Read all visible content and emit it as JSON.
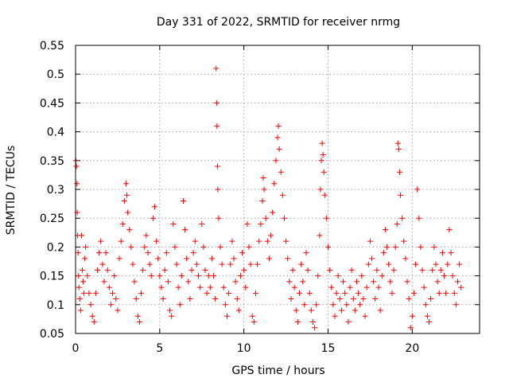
{
  "chart_data": {
    "type": "scatter",
    "title": "Day 331 of 2022, SRMTID for receiver nrmg",
    "xlabel": "GPS time / hours",
    "ylabel": "SRMTID / TECUs",
    "xlim": [
      0,
      24
    ],
    "ylim": [
      0.05,
      0.55
    ],
    "xticks": [
      0,
      5,
      10,
      15,
      20
    ],
    "xtick_labels": [
      "0",
      "5",
      "10",
      "15",
      "20"
    ],
    "yticks": [
      0.05,
      0.1,
      0.15,
      0.2,
      0.25,
      0.3,
      0.35,
      0.4,
      0.45,
      0.5,
      0.55
    ],
    "ytick_labels": [
      "0.05",
      "0.1",
      "0.15",
      "0.2",
      "0.25",
      "0.3",
      "0.35",
      "0.4",
      "0.45",
      "0.5",
      "0.55"
    ],
    "grid": true,
    "marker": "+",
    "series": [
      {
        "name": "nrmg",
        "color": "#ff0000",
        "points": [
          [
            0.02,
            0.35
          ],
          [
            0.05,
            0.34
          ],
          [
            0.08,
            0.31
          ],
          [
            0.1,
            0.26
          ],
          [
            0.12,
            0.22
          ],
          [
            0.15,
            0.19
          ],
          [
            0.18,
            0.15
          ],
          [
            0.2,
            0.13
          ],
          [
            0.25,
            0.11
          ],
          [
            0.3,
            0.09
          ],
          [
            0.35,
            0.22
          ],
          [
            0.4,
            0.16
          ],
          [
            0.45,
            0.14
          ],
          [
            0.5,
            0.12
          ],
          [
            0.55,
            0.18
          ],
          [
            0.6,
            0.2
          ],
          [
            0.7,
            0.15
          ],
          [
            0.8,
            0.12
          ],
          [
            0.9,
            0.1
          ],
          [
            1.0,
            0.08
          ],
          [
            1.1,
            0.07
          ],
          [
            1.2,
            0.12
          ],
          [
            1.3,
            0.16
          ],
          [
            1.4,
            0.19
          ],
          [
            1.5,
            0.21
          ],
          [
            1.6,
            0.17
          ],
          [
            1.7,
            0.14
          ],
          [
            1.8,
            0.19
          ],
          [
            1.9,
            0.16
          ],
          [
            2.0,
            0.13
          ],
          [
            2.1,
            0.1
          ],
          [
            2.2,
            0.12
          ],
          [
            2.3,
            0.15
          ],
          [
            2.4,
            0.11
          ],
          [
            2.5,
            0.09
          ],
          [
            2.6,
            0.18
          ],
          [
            2.7,
            0.21
          ],
          [
            2.8,
            0.24
          ],
          [
            2.9,
            0.28
          ],
          [
            3.0,
            0.31
          ],
          [
            3.05,
            0.29
          ],
          [
            3.1,
            0.26
          ],
          [
            3.2,
            0.23
          ],
          [
            3.3,
            0.2
          ],
          [
            3.4,
            0.17
          ],
          [
            3.5,
            0.14
          ],
          [
            3.6,
            0.11
          ],
          [
            3.7,
            0.08
          ],
          [
            3.8,
            0.07
          ],
          [
            3.9,
            0.12
          ],
          [
            4.0,
            0.16
          ],
          [
            4.1,
            0.2
          ],
          [
            4.2,
            0.22
          ],
          [
            4.3,
            0.19
          ],
          [
            4.4,
            0.17
          ],
          [
            4.5,
            0.15
          ],
          [
            4.6,
            0.25
          ],
          [
            4.7,
            0.27
          ],
          [
            4.8,
            0.21
          ],
          [
            4.9,
            0.18
          ],
          [
            5.0,
            0.15
          ],
          [
            5.1,
            0.13
          ],
          [
            5.2,
            0.11
          ],
          [
            5.3,
            0.16
          ],
          [
            5.4,
            0.19
          ],
          [
            5.5,
            0.14
          ],
          [
            5.6,
            0.09
          ],
          [
            5.7,
            0.08
          ],
          [
            5.8,
            0.24
          ],
          [
            5.9,
            0.2
          ],
          [
            6.0,
            0.17
          ],
          [
            6.1,
            0.13
          ],
          [
            6.2,
            0.1
          ],
          [
            6.3,
            0.15
          ],
          [
            6.4,
            0.28
          ],
          [
            6.5,
            0.23
          ],
          [
            6.6,
            0.18
          ],
          [
            6.7,
            0.14
          ],
          [
            6.8,
            0.11
          ],
          [
            6.9,
            0.16
          ],
          [
            7.0,
            0.19
          ],
          [
            7.1,
            0.21
          ],
          [
            7.2,
            0.17
          ],
          [
            7.3,
            0.15
          ],
          [
            7.4,
            0.13
          ],
          [
            7.5,
            0.24
          ],
          [
            7.6,
            0.2
          ],
          [
            7.7,
            0.16
          ],
          [
            7.8,
            0.12
          ],
          [
            7.9,
            0.15
          ],
          [
            8.0,
            0.13
          ],
          [
            8.1,
            0.18
          ],
          [
            8.2,
            0.15
          ],
          [
            8.3,
            0.11
          ],
          [
            8.35,
            0.51
          ],
          [
            8.38,
            0.45
          ],
          [
            8.4,
            0.41
          ],
          [
            8.43,
            0.34
          ],
          [
            8.45,
            0.3
          ],
          [
            8.5,
            0.25
          ],
          [
            8.6,
            0.2
          ],
          [
            8.7,
            0.17
          ],
          [
            8.8,
            0.13
          ],
          [
            8.9,
            0.1
          ],
          [
            9.0,
            0.08
          ],
          [
            9.1,
            0.12
          ],
          [
            9.2,
            0.17
          ],
          [
            9.3,
            0.21
          ],
          [
            9.4,
            0.18
          ],
          [
            9.5,
            0.14
          ],
          [
            9.6,
            0.11
          ],
          [
            9.7,
            0.09
          ],
          [
            9.8,
            0.15
          ],
          [
            9.9,
            0.19
          ],
          [
            10.0,
            0.16
          ],
          [
            10.1,
            0.13
          ],
          [
            10.2,
            0.24
          ],
          [
            10.3,
            0.2
          ],
          [
            10.4,
            0.17
          ],
          [
            10.5,
            0.08
          ],
          [
            10.6,
            0.07
          ],
          [
            10.7,
            0.12
          ],
          [
            10.8,
            0.17
          ],
          [
            10.9,
            0.21
          ],
          [
            11.0,
            0.24
          ],
          [
            11.1,
            0.28
          ],
          [
            11.15,
            0.32
          ],
          [
            11.2,
            0.3
          ],
          [
            11.3,
            0.25
          ],
          [
            11.4,
            0.21
          ],
          [
            11.5,
            0.18
          ],
          [
            11.6,
            0.22
          ],
          [
            11.7,
            0.26
          ],
          [
            11.8,
            0.31
          ],
          [
            11.9,
            0.35
          ],
          [
            12.0,
            0.39
          ],
          [
            12.05,
            0.41
          ],
          [
            12.1,
            0.37
          ],
          [
            12.2,
            0.33
          ],
          [
            12.3,
            0.29
          ],
          [
            12.4,
            0.25
          ],
          [
            12.5,
            0.21
          ],
          [
            12.6,
            0.18
          ],
          [
            12.7,
            0.14
          ],
          [
            12.8,
            0.11
          ],
          [
            12.9,
            0.16
          ],
          [
            13.0,
            0.13
          ],
          [
            13.1,
            0.09
          ],
          [
            13.2,
            0.07
          ],
          [
            13.3,
            0.12
          ],
          [
            13.4,
            0.17
          ],
          [
            13.5,
            0.14
          ],
          [
            13.6,
            0.1
          ],
          [
            13.7,
            0.19
          ],
          [
            13.8,
            0.16
          ],
          [
            13.9,
            0.12
          ],
          [
            14.0,
            0.09
          ],
          [
            14.1,
            0.07
          ],
          [
            14.2,
            0.06
          ],
          [
            14.3,
            0.1
          ],
          [
            14.4,
            0.15
          ],
          [
            14.5,
            0.22
          ],
          [
            14.55,
            0.3
          ],
          [
            14.6,
            0.35
          ],
          [
            14.65,
            0.38
          ],
          [
            14.7,
            0.36
          ],
          [
            14.75,
            0.33
          ],
          [
            14.8,
            0.29
          ],
          [
            14.9,
            0.25
          ],
          [
            15.0,
            0.2
          ],
          [
            15.1,
            0.16
          ],
          [
            15.2,
            0.13
          ],
          [
            15.3,
            0.1
          ],
          [
            15.4,
            0.08
          ],
          [
            15.5,
            0.12
          ],
          [
            15.6,
            0.15
          ],
          [
            15.7,
            0.11
          ],
          [
            15.8,
            0.09
          ],
          [
            15.9,
            0.14
          ],
          [
            16.0,
            0.12
          ],
          [
            16.1,
            0.1
          ],
          [
            16.2,
            0.07
          ],
          [
            16.3,
            0.13
          ],
          [
            16.4,
            0.16
          ],
          [
            16.5,
            0.11
          ],
          [
            16.6,
            0.09
          ],
          [
            16.7,
            0.14
          ],
          [
            16.8,
            0.12
          ],
          [
            16.9,
            0.1
          ],
          [
            17.0,
            0.15
          ],
          [
            17.1,
            0.11
          ],
          [
            17.2,
            0.08
          ],
          [
            17.3,
            0.13
          ],
          [
            17.4,
            0.17
          ],
          [
            17.5,
            0.21
          ],
          [
            17.6,
            0.18
          ],
          [
            17.7,
            0.14
          ],
          [
            17.8,
            0.11
          ],
          [
            17.9,
            0.16
          ],
          [
            18.0,
            0.13
          ],
          [
            18.1,
            0.09
          ],
          [
            18.2,
            0.15
          ],
          [
            18.3,
            0.19
          ],
          [
            18.4,
            0.23
          ],
          [
            18.5,
            0.2
          ],
          [
            18.6,
            0.17
          ],
          [
            18.7,
            0.14
          ],
          [
            18.8,
            0.12
          ],
          [
            18.9,
            0.16
          ],
          [
            19.0,
            0.2
          ],
          [
            19.1,
            0.24
          ],
          [
            19.15,
            0.38
          ],
          [
            19.2,
            0.37
          ],
          [
            19.25,
            0.33
          ],
          [
            19.3,
            0.29
          ],
          [
            19.4,
            0.25
          ],
          [
            19.5,
            0.21
          ],
          [
            19.6,
            0.18
          ],
          [
            19.7,
            0.14
          ],
          [
            19.8,
            0.11
          ],
          [
            19.9,
            0.06
          ],
          [
            20.0,
            0.08
          ],
          [
            20.1,
            0.12
          ],
          [
            20.2,
            0.17
          ],
          [
            20.3,
            0.3
          ],
          [
            20.4,
            0.25
          ],
          [
            20.5,
            0.2
          ],
          [
            20.6,
            0.16
          ],
          [
            20.7,
            0.13
          ],
          [
            20.8,
            0.1
          ],
          [
            20.9,
            0.08
          ],
          [
            21.0,
            0.07
          ],
          [
            21.1,
            0.11
          ],
          [
            21.2,
            0.16
          ],
          [
            21.3,
            0.2
          ],
          [
            21.4,
            0.17
          ],
          [
            21.5,
            0.14
          ],
          [
            21.6,
            0.12
          ],
          [
            21.7,
            0.16
          ],
          [
            21.8,
            0.19
          ],
          [
            21.9,
            0.15
          ],
          [
            22.0,
            0.12
          ],
          [
            22.1,
            0.17
          ],
          [
            22.2,
            0.23
          ],
          [
            22.3,
            0.19
          ],
          [
            22.4,
            0.15
          ],
          [
            22.5,
            0.12
          ],
          [
            22.6,
            0.1
          ],
          [
            22.7,
            0.14
          ],
          [
            22.8,
            0.17
          ],
          [
            22.9,
            0.13
          ]
        ]
      }
    ]
  }
}
